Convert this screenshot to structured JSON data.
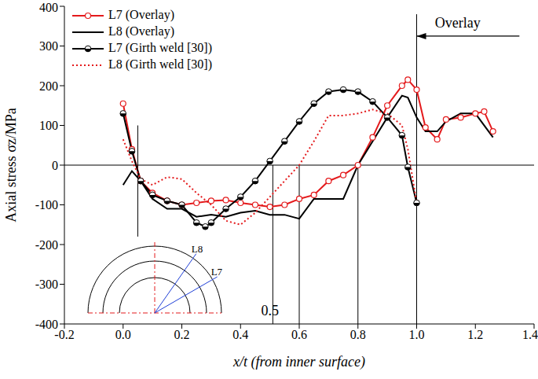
{
  "chart_data": {
    "type": "line",
    "xlabel": "x/t (from inner surface)",
    "ylabel": "Axial stress σz/MPa",
    "xlim": [
      -0.2,
      1.4
    ],
    "ylim": [
      -400,
      400
    ],
    "xticks": [
      -0.2,
      {
        "value": 0,
        "label": "0.0"
      },
      0.2,
      0.4,
      0.6,
      0.8,
      {
        "value": 1,
        "label": "1.0"
      },
      1.2,
      1.4
    ],
    "yticks": [
      -400,
      -300,
      -200,
      -100,
      0,
      100,
      200,
      300,
      400
    ],
    "legend": "upper left",
    "series": [
      {
        "name": "L7 (Overlay)",
        "color": "#e41a1c",
        "marker": "circle_open",
        "line_style": "solid",
        "x": [
          0,
          0.03,
          0.06,
          0.1,
          0.15,
          0.2,
          0.25,
          0.3,
          0.35,
          0.4,
          0.45,
          0.5,
          0.55,
          0.6,
          0.65,
          0.7,
          0.75,
          0.8,
          0.85,
          0.9,
          0.95,
          0.97,
          1.0,
          1.03,
          1.07,
          1.1,
          1.15,
          1.2,
          1.23,
          1.26
        ],
        "values": [
          155,
          40,
          -40,
          -70,
          -90,
          -100,
          -95,
          -90,
          -88,
          -95,
          -100,
          -105,
          -100,
          -85,
          -75,
          -40,
          -25,
          0,
          70,
          150,
          200,
          215,
          190,
          95,
          65,
          115,
          120,
          130,
          135,
          85
        ]
      },
      {
        "name": "L8 (Overlay)",
        "color": "#000000",
        "marker": "none",
        "line_style": "solid",
        "x": [
          0,
          0.03,
          0.06,
          0.1,
          0.15,
          0.2,
          0.25,
          0.3,
          0.35,
          0.4,
          0.45,
          0.5,
          0.55,
          0.6,
          0.65,
          0.7,
          0.75,
          0.8,
          0.85,
          0.9,
          0.95,
          0.97,
          1.0,
          1.03,
          1.07,
          1.1,
          1.15,
          1.2,
          1.26
        ],
        "values": [
          -50,
          -15,
          -40,
          -85,
          -110,
          -110,
          -130,
          -125,
          -130,
          -120,
          -115,
          -125,
          -125,
          -135,
          -85,
          -85,
          -85,
          0,
          60,
          120,
          175,
          170,
          120,
          85,
          85,
          110,
          130,
          130,
          70
        ]
      },
      {
        "name": "L7 (Girth weld [30])",
        "color": "#000000",
        "marker": "circle_half",
        "line_style": "solid",
        "x": [
          0,
          0.03,
          0.06,
          0.1,
          0.15,
          0.2,
          0.25,
          0.28,
          0.3,
          0.35,
          0.4,
          0.45,
          0.5,
          0.55,
          0.6,
          0.65,
          0.7,
          0.75,
          0.8,
          0.85,
          0.9,
          0.95,
          0.97,
          1.0
        ],
        "values": [
          130,
          35,
          -40,
          -75,
          -90,
          -100,
          -145,
          -155,
          -145,
          -110,
          -80,
          -40,
          10,
          60,
          110,
          155,
          185,
          190,
          185,
          160,
          120,
          75,
          -5,
          -95
        ]
      },
      {
        "name": "L8 (Girth weld [30])",
        "color": "#e41a1c",
        "marker": "none",
        "line_style": "dotted",
        "x": [
          0,
          0.03,
          0.06,
          0.1,
          0.15,
          0.2,
          0.25,
          0.3,
          0.35,
          0.4,
          0.45,
          0.5,
          0.55,
          0.6,
          0.65,
          0.7,
          0.75,
          0.8,
          0.85,
          0.9,
          0.95,
          0.97,
          1.0
        ],
        "values": [
          65,
          10,
          -35,
          -50,
          -30,
          -35,
          -70,
          -100,
          -140,
          -150,
          -120,
          -80,
          -40,
          0,
          60,
          125,
          125,
          130,
          140,
          130,
          100,
          40,
          -95
        ]
      }
    ],
    "hline": 0,
    "vlines": [
      {
        "x": 0.05,
        "y": [
          -180,
          100
        ]
      },
      {
        "x": 0.51,
        "y": [
          -400,
          0
        ]
      },
      {
        "x": 0.6,
        "y": [
          -400,
          0
        ]
      },
      {
        "x": 0.8,
        "y": [
          -400,
          0
        ]
      },
      {
        "x": 1.0,
        "y": [
          -400,
          380
        ]
      }
    ],
    "arrow": {
      "x": [
        1.35,
        1.0
      ],
      "y": 325
    },
    "annotations": [
      {
        "text": "Overlay",
        "x": 1.14,
        "y": 355
      },
      {
        "text": "0.5",
        "x": 0.5,
        "y": -370
      }
    ],
    "inset_labels": [
      "L8",
      "L7"
    ]
  }
}
